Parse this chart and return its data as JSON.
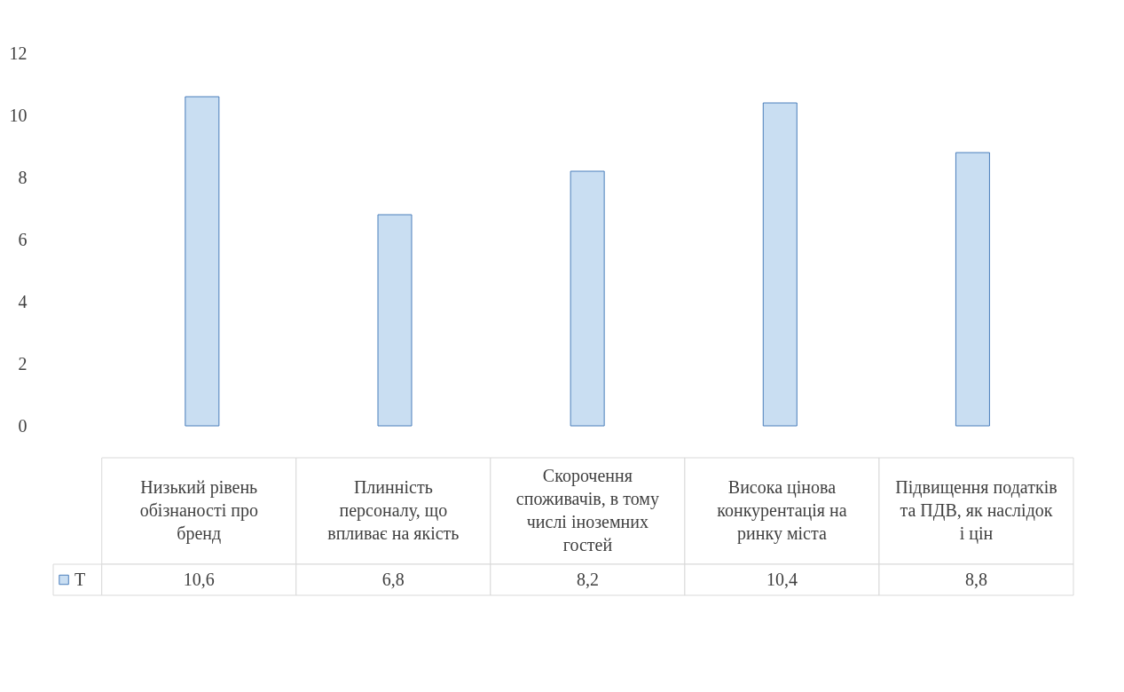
{
  "chart_data": {
    "type": "bar",
    "categories": [
      "Низький рівень обізнаності про бренд",
      "Плинність персоналу, що впливає на якість",
      "Скорочення споживачів, в тому числі іноземних гостей",
      "Висока цінова конкурентація на ринку міста",
      "Підвищення податків та ПДВ, як наслідок і цін"
    ],
    "series": [
      {
        "name": "T",
        "color": "#c9def2",
        "values": [
          10.6,
          6.8,
          8.2,
          10.4,
          8.8
        ],
        "value_labels": [
          "10,6",
          "6,8",
          "8,2",
          "10,4",
          "8,8"
        ]
      }
    ],
    "ylim": [
      0,
      12
    ],
    "yticks": [
      0,
      2,
      4,
      6,
      8,
      10,
      12
    ],
    "grid": false
  }
}
